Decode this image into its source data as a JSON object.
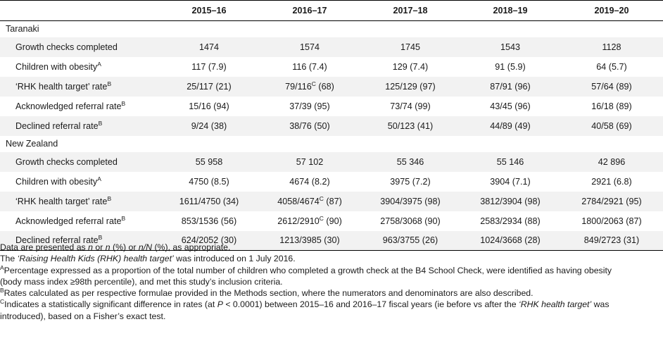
{
  "columns": [
    "2015–16",
    "2016–17",
    "2017–18",
    "2018–19",
    "2019–20"
  ],
  "sections": [
    {
      "name": "Taranaki",
      "rows": [
        {
          "label": "Growth checks completed",
          "sup": "",
          "values": [
            {
              "v": "1474",
              "sup": "",
              "rest": ""
            },
            {
              "v": "1574",
              "sup": "",
              "rest": ""
            },
            {
              "v": "1745",
              "sup": "",
              "rest": ""
            },
            {
              "v": "1543",
              "sup": "",
              "rest": ""
            },
            {
              "v": "1128",
              "sup": "",
              "rest": ""
            }
          ]
        },
        {
          "label": "Children with obesity",
          "sup": "A",
          "values": [
            {
              "v": "117 (7.9)",
              "sup": "",
              "rest": ""
            },
            {
              "v": "116 (7.4)",
              "sup": "",
              "rest": ""
            },
            {
              "v": "129 (7.4)",
              "sup": "",
              "rest": ""
            },
            {
              "v": "91 (5.9)",
              "sup": "",
              "rest": ""
            },
            {
              "v": "64 (5.7)",
              "sup": "",
              "rest": ""
            }
          ]
        },
        {
          "label": "‘RHK health target’ rate",
          "sup": "B",
          "values": [
            {
              "v": "25/117 (21)",
              "sup": "",
              "rest": ""
            },
            {
              "v": "79/116",
              "sup": "C",
              "rest": " (68)"
            },
            {
              "v": "125/129 (97)",
              "sup": "",
              "rest": ""
            },
            {
              "v": "87/91 (96)",
              "sup": "",
              "rest": ""
            },
            {
              "v": "57/64 (89)",
              "sup": "",
              "rest": ""
            }
          ]
        },
        {
          "label": "Acknowledged referral rate",
          "sup": "B",
          "values": [
            {
              "v": "15/16 (94)",
              "sup": "",
              "rest": ""
            },
            {
              "v": "37/39 (95)",
              "sup": "",
              "rest": ""
            },
            {
              "v": "73/74 (99)",
              "sup": "",
              "rest": ""
            },
            {
              "v": "43/45 (96)",
              "sup": "",
              "rest": ""
            },
            {
              "v": "16/18 (89)",
              "sup": "",
              "rest": ""
            }
          ]
        },
        {
          "label": "Declined referral rate",
          "sup": "B",
          "values": [
            {
              "v": "9/24 (38)",
              "sup": "",
              "rest": ""
            },
            {
              "v": "38/76 (50)",
              "sup": "",
              "rest": ""
            },
            {
              "v": "50/123 (41)",
              "sup": "",
              "rest": ""
            },
            {
              "v": "44/89 (49)",
              "sup": "",
              "rest": ""
            },
            {
              "v": "40/58 (69)",
              "sup": "",
              "rest": ""
            }
          ]
        }
      ]
    },
    {
      "name": "New Zealand",
      "rows": [
        {
          "label": "Growth checks completed",
          "sup": "",
          "values": [
            {
              "v": "55 958",
              "sup": "",
              "rest": ""
            },
            {
              "v": "57 102",
              "sup": "",
              "rest": ""
            },
            {
              "v": "55 346",
              "sup": "",
              "rest": ""
            },
            {
              "v": "55 146",
              "sup": "",
              "rest": ""
            },
            {
              "v": "42 896",
              "sup": "",
              "rest": ""
            }
          ]
        },
        {
          "label": "Children with obesity",
          "sup": "A",
          "values": [
            {
              "v": "4750 (8.5)",
              "sup": "",
              "rest": ""
            },
            {
              "v": "4674 (8.2)",
              "sup": "",
              "rest": ""
            },
            {
              "v": "3975 (7.2)",
              "sup": "",
              "rest": ""
            },
            {
              "v": "3904 (7.1)",
              "sup": "",
              "rest": ""
            },
            {
              "v": "2921 (6.8)",
              "sup": "",
              "rest": ""
            }
          ]
        },
        {
          "label": "‘RHK health target’ rate",
          "sup": "B",
          "values": [
            {
              "v": "1611/4750 (34)",
              "sup": "",
              "rest": ""
            },
            {
              "v": "4058/4674",
              "sup": "C",
              "rest": " (87)"
            },
            {
              "v": "3904/3975 (98)",
              "sup": "",
              "rest": ""
            },
            {
              "v": "3812/3904 (98)",
              "sup": "",
              "rest": ""
            },
            {
              "v": "2784/2921 (95)",
              "sup": "",
              "rest": ""
            }
          ]
        },
        {
          "label": "Acknowledged referral rate",
          "sup": "B",
          "values": [
            {
              "v": "853/1536 (56)",
              "sup": "",
              "rest": ""
            },
            {
              "v": "2612/2910",
              "sup": "C",
              "rest": " (90)"
            },
            {
              "v": "2758/3068 (90)",
              "sup": "",
              "rest": ""
            },
            {
              "v": "2583/2934 (88)",
              "sup": "",
              "rest": ""
            },
            {
              "v": "1800/2063 (87)",
              "sup": "",
              "rest": ""
            }
          ]
        },
        {
          "label": "Declined referral rate",
          "sup": "B",
          "values": [
            {
              "v": "624/2052 (30)",
              "sup": "",
              "rest": ""
            },
            {
              "v": "1213/3985 (30)",
              "sup": "",
              "rest": ""
            },
            {
              "v": "963/3755 (26)",
              "sup": "",
              "rest": ""
            },
            {
              "v": "1024/3668 (28)",
              "sup": "",
              "rest": ""
            },
            {
              "v": "849/2723 (31)",
              "sup": "",
              "rest": ""
            }
          ]
        }
      ]
    }
  ],
  "notes": {
    "n1_a": "Data are presented as ",
    "n1_n": "n",
    "n1_b": " or ",
    "n1_n2": "n",
    "n1_c": " (%) or ",
    "n1_nN": "n/N",
    "n1_d": " (%), as appropriate.",
    "n2_a": "The ",
    "n2_i": "‘Raising Health Kids (RHK) health target’",
    "n2_b": " was introduced on 1 July 2016.",
    "fnA_sup": "A",
    "fnA_line1": "Percentage expressed as a proportion of the total number of children who completed a growth check at the B4 School Check, were identified as having obesity",
    "fnA_line2": "(body mass index ≥98th percentile), and met this study’s inclusion criteria.",
    "fnB_sup": "B",
    "fnB_text": "Rates calculated as per respective formulae provided in the Methods section, where the numerators and denominators are also described.",
    "fnC_sup": "C",
    "fnC_a": "Indicates a statistically significant difference in rates (at ",
    "fnC_p": "P",
    "fnC_b": " < 0.0001) between 2015–16 and 2016–17 fiscal years (ie before vs after the ",
    "fnC_i": "‘RHK health target’",
    "fnC_c": " was",
    "fnC_line2": "introduced), based on a Fisher’s exact test."
  }
}
